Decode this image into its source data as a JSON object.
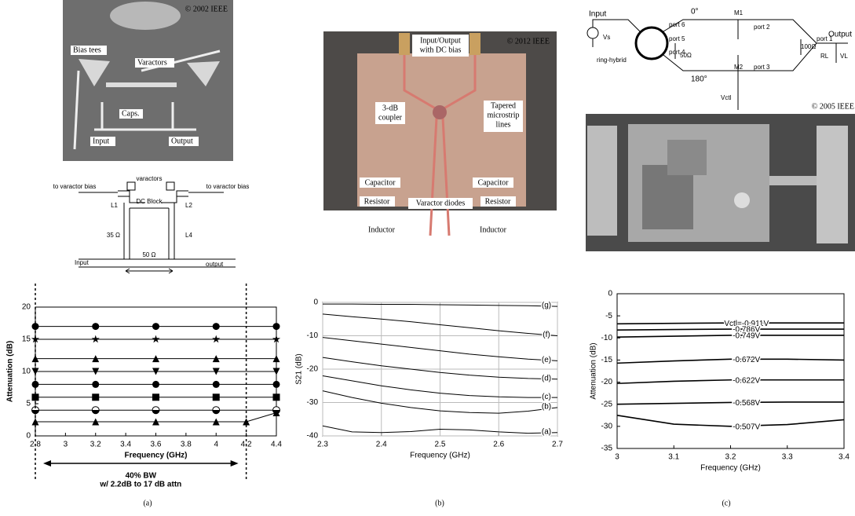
{
  "panels": [
    {
      "caption": "(a)",
      "photo": {
        "copyright": "© 2002 IEEE",
        "labels": [
          "Bias tees",
          "Varactors",
          "Caps.",
          "Input",
          "Output"
        ]
      },
      "schematic": {
        "labels": [
          "varactors",
          "to varactor bias",
          "to varactor bias",
          "DC Block",
          "L1",
          "L2",
          "35 Ω",
          "L4",
          "50 Ω",
          "Input",
          "output"
        ]
      }
    },
    {
      "caption": "(b)",
      "photo": {
        "copyright": "© 2012 IEEE",
        "labels": [
          "Input/Output",
          "with DC bias",
          "3-dB",
          "coupler",
          "Tapered",
          "microstrip",
          "lines",
          "Capacitor",
          "Capacitor",
          "Resistor",
          "Resistor",
          "Inductor",
          "Inductor",
          "Varactor diodes"
        ]
      }
    },
    {
      "caption": "(c)",
      "photo": {
        "copyright": "© 2005 IEEE"
      },
      "schematic": {
        "labels": [
          "Input",
          "Vs",
          "ring-hybrid",
          "0°",
          "180°",
          "M1",
          "M2",
          "port 6",
          "port 5",
          "port 4",
          "50Ω",
          "port 2",
          "port 3",
          "port 1",
          "100Ω",
          "Output",
          "RL",
          "VL",
          "Vctl"
        ]
      }
    }
  ],
  "chart_data": [
    {
      "type": "line",
      "x_label": "Frequency (GHz)",
      "y_label": "Attenuation (dB)",
      "xlim": [
        2.8,
        4.4
      ],
      "xticks": [
        2.8,
        3,
        3.2,
        3.4,
        3.6,
        3.8,
        4,
        4.2,
        4.4
      ],
      "ylim": [
        0,
        20
      ],
      "yticks": [
        0,
        5,
        10,
        15,
        20
      ],
      "grid": false,
      "bw_lines": [
        2.8,
        4.2
      ],
      "bw_label": "40% BW",
      "bw_note": "w/ 2.2dB to 17 dB attn",
      "series": [
        {
          "color": "#000",
          "marker": "triangle",
          "x": [
            2.8,
            3.2,
            3.6,
            4,
            4.2,
            4.4
          ],
          "values": [
            2.2,
            2.2,
            2.2,
            2.2,
            2.2,
            3.6
          ]
        },
        {
          "color": "#000",
          "marker": "circle-half",
          "x": [
            2.8,
            3.2,
            3.6,
            4,
            4.4
          ],
          "values": [
            4,
            4,
            4,
            4,
            4
          ]
        },
        {
          "color": "#000",
          "marker": "square",
          "x": [
            2.8,
            3.2,
            3.6,
            4,
            4.4
          ],
          "values": [
            6,
            6,
            6,
            6,
            6
          ]
        },
        {
          "color": "#000",
          "marker": "circle",
          "x": [
            2.8,
            3.2,
            3.6,
            4,
            4.4
          ],
          "values": [
            8,
            8,
            8,
            8,
            8
          ]
        },
        {
          "color": "#000",
          "marker": "triangle-down",
          "x": [
            2.8,
            3.2,
            3.6,
            4,
            4.4
          ],
          "values": [
            10,
            10,
            10,
            10,
            10
          ]
        },
        {
          "color": "#000",
          "marker": "triangle",
          "x": [
            2.8,
            3.2,
            3.6,
            4,
            4.4
          ],
          "values": [
            12,
            12,
            12,
            12,
            12
          ]
        },
        {
          "color": "#000",
          "marker": "star",
          "x": [
            2.8,
            3.2,
            3.6,
            4,
            4.4
          ],
          "values": [
            15,
            15,
            15,
            15,
            15
          ]
        },
        {
          "color": "#000",
          "marker": "circle",
          "x": [
            2.8,
            3.2,
            3.6,
            4,
            4.4
          ],
          "values": [
            17,
            17,
            17,
            17,
            17
          ]
        }
      ]
    },
    {
      "type": "line",
      "x_label": "Frequency (GHz)",
      "y_label": "S21 (dB)",
      "xlim": [
        2.3,
        2.7
      ],
      "xticks": [
        2.3,
        2.4,
        2.5,
        2.6,
        2.7
      ],
      "ylim": [
        -40,
        0
      ],
      "yticks": [
        -40,
        -30,
        -20,
        -10,
        0
      ],
      "grid": true,
      "x": [
        2.3,
        2.35,
        2.4,
        2.45,
        2.5,
        2.55,
        2.6,
        2.65,
        2.7
      ],
      "series": [
        {
          "name": "(a)",
          "color": "#000",
          "values": [
            -37,
            -38.8,
            -39,
            -38.7,
            -38,
            -38.2,
            -38.8,
            -39.2,
            -39
          ]
        },
        {
          "name": "(b)",
          "color": "#000",
          "values": [
            -26.5,
            -28.5,
            -30.2,
            -31.5,
            -32.5,
            -33,
            -33.2,
            -32.6,
            -31.5
          ]
        },
        {
          "name": "(c)",
          "color": "#000",
          "values": [
            -22,
            -23.5,
            -25,
            -26.2,
            -27.2,
            -27.9,
            -28.3,
            -28.5,
            -28.5
          ]
        },
        {
          "name": "(d)",
          "color": "#000",
          "values": [
            -16.5,
            -17.8,
            -19,
            -20,
            -21,
            -21.8,
            -22.4,
            -22.8,
            -23
          ]
        },
        {
          "name": "(e)",
          "color": "#000",
          "values": [
            -10.5,
            -11.5,
            -12.5,
            -13.5,
            -14.5,
            -15.5,
            -16.3,
            -17,
            -17.5
          ]
        },
        {
          "name": "(f)",
          "color": "#000",
          "values": [
            -3.5,
            -4.3,
            -5,
            -5.8,
            -6.7,
            -7.6,
            -8.5,
            -9.3,
            -10
          ]
        },
        {
          "name": "(g)",
          "color": "#000",
          "values": [
            -0.5,
            -0.5,
            -0.6,
            -0.6,
            -0.7,
            -0.8,
            -0.9,
            -1,
            -1.2
          ]
        }
      ]
    },
    {
      "type": "line",
      "x_label": "Frequency (GHz)",
      "y_label": "Attenuation (dB)",
      "xlim": [
        3,
        3.4
      ],
      "xticks": [
        3,
        3.1,
        3.2,
        3.3,
        3.4
      ],
      "ylim": [
        -35,
        0
      ],
      "yticks": [
        -35,
        -30,
        -25,
        -20,
        -15,
        -10,
        -5,
        0
      ],
      "grid": false,
      "x": [
        3,
        3.1,
        3.2,
        3.3,
        3.4
      ],
      "series": [
        {
          "name": "Vctl=-0.911V",
          "color": "#000",
          "values": [
            -6.8,
            -6.7,
            -6.6,
            -6.6,
            -6.6
          ]
        },
        {
          "name": "-0.786V",
          "color": "#000",
          "values": [
            -8.2,
            -8.1,
            -8,
            -8,
            -8
          ]
        },
        {
          "name": "-0.749V",
          "color": "#000",
          "values": [
            -9.8,
            -9.6,
            -9.4,
            -9.4,
            -9.4
          ]
        },
        {
          "name": "-0.672V",
          "color": "#000",
          "values": [
            -15.7,
            -15.2,
            -14.8,
            -14.8,
            -15
          ]
        },
        {
          "name": "-0.622V",
          "color": "#000",
          "values": [
            -20.3,
            -19.8,
            -19.5,
            -19.5,
            -19.5
          ]
        },
        {
          "name": "-0.568V",
          "color": "#000",
          "values": [
            -25,
            -24.8,
            -24.6,
            -24.5,
            -24.5
          ]
        },
        {
          "name": "-0.507V",
          "color": "#000",
          "values": [
            -27.5,
            -29.5,
            -30,
            -29.6,
            -28.5
          ]
        }
      ]
    }
  ]
}
